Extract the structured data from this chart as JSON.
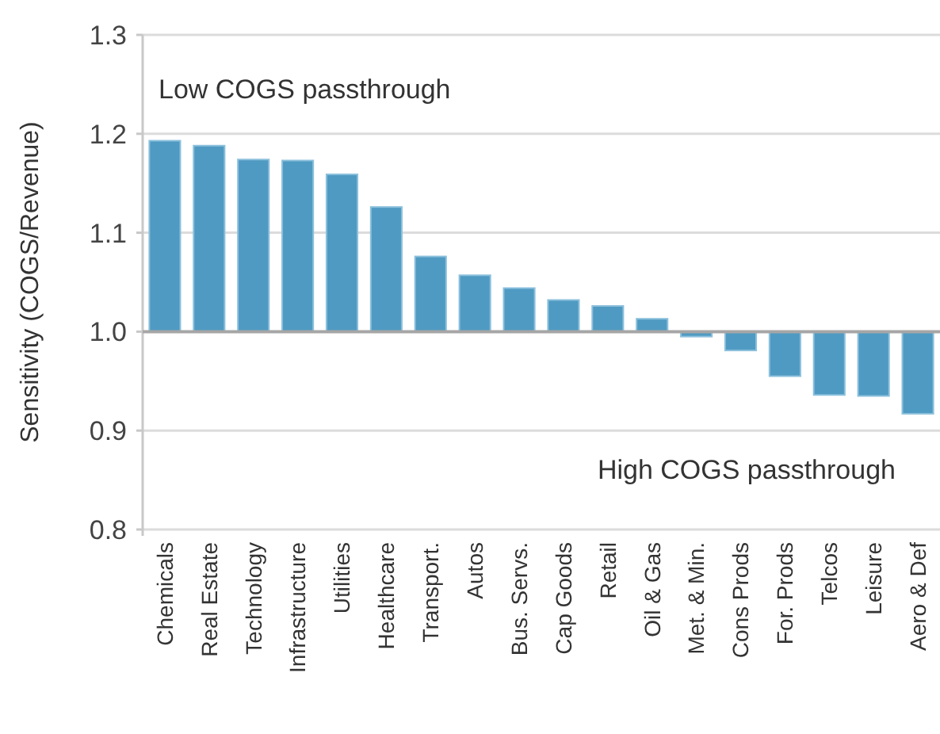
{
  "chart_data": {
    "type": "bar",
    "ylabel": "Sensitivity (COGS/Revenue)",
    "categories": [
      "Chemicals",
      "Real Estate",
      "Technology",
      "Infrastructure",
      "Utilities",
      "Healthcare",
      "Transport.",
      "Autos",
      "Bus. Servs.",
      "Cap Goods",
      "Retail",
      "Oil & Gas",
      "Met. & Min.",
      "Cons Prods",
      "For. Prods",
      "Telcos",
      "Leisure",
      "Aero & Def"
    ],
    "values": [
      0.193,
      0.188,
      0.174,
      0.173,
      0.159,
      0.126,
      0.076,
      0.057,
      0.044,
      0.032,
      0.026,
      0.013,
      -0.005,
      -0.019,
      -0.045,
      -0.064,
      -0.065,
      -0.083
    ],
    "base": [
      1,
      1,
      1,
      1,
      1,
      1,
      1,
      1,
      1,
      1,
      1,
      1,
      1,
      1,
      1,
      1,
      1,
      1
    ],
    "color": "#4f9ac2",
    "ylim": [
      0.8,
      1.3
    ],
    "yticks": [
      {
        "value": 0.8,
        "label": "0.8"
      },
      {
        "value": 0.9,
        "label": "0.9"
      },
      {
        "value": 1.0,
        "label": "1.0"
      },
      {
        "value": 1.1,
        "label": "1.1"
      },
      {
        "value": 1.2,
        "label": "1.2"
      },
      {
        "value": 1.3,
        "label": "1.3"
      }
    ],
    "grid": "y",
    "ref_lines": [
      {
        "axis": "y",
        "value": 1.0,
        "color": "#a6a6a6"
      }
    ],
    "annotations": [
      "Low COGS passthrough",
      "High COGS passthrough"
    ]
  }
}
